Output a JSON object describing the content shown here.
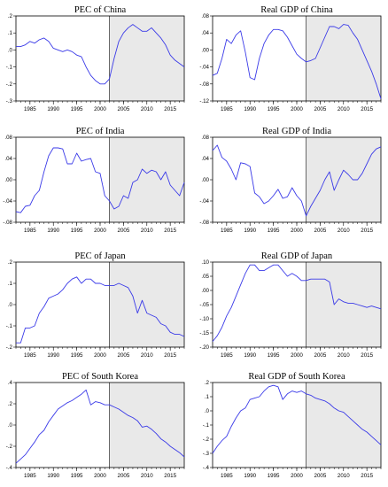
{
  "chart_data": [
    {
      "type": "line",
      "title": "PEC of China",
      "xlim": [
        1982,
        2018
      ],
      "ylim": [
        -0.3,
        0.2
      ],
      "yticks": [
        0.2,
        0.1,
        0.0,
        -0.1,
        -0.2,
        -0.3
      ],
      "ytick_labels": [
        ".2",
        ".1",
        ".0",
        "-.1",
        "-.2",
        "-.3"
      ],
      "xticks": [
        1985,
        1990,
        1995,
        2000,
        2005,
        2010,
        2015
      ],
      "xtick_labels": [
        "1985",
        "1990",
        "1995",
        "2000",
        "2005",
        "2010",
        "2015"
      ],
      "shade_from": 2002,
      "line_color": "#3a3ae8",
      "x": [
        1982,
        1983,
        1984,
        1985,
        1986,
        1987,
        1988,
        1989,
        1990,
        1991,
        1992,
        1993,
        1994,
        1995,
        1996,
        1997,
        1998,
        1999,
        2000,
        2001,
        2002,
        2003,
        2004,
        2005,
        2006,
        2007,
        2008,
        2009,
        2010,
        2011,
        2012,
        2013,
        2014,
        2015,
        2016,
        2017,
        2018
      ],
      "y": [
        0.02,
        0.02,
        0.03,
        0.05,
        0.04,
        0.06,
        0.07,
        0.05,
        0.01,
        0.0,
        -0.01,
        0.0,
        -0.01,
        -0.03,
        -0.04,
        -0.1,
        -0.15,
        -0.18,
        -0.2,
        -0.2,
        -0.17,
        -0.05,
        0.05,
        0.1,
        0.13,
        0.15,
        0.13,
        0.11,
        0.11,
        0.13,
        0.1,
        0.07,
        0.03,
        -0.03,
        -0.06,
        -0.08,
        -0.1
      ]
    },
    {
      "type": "line",
      "title": "Real GDP of China",
      "xlim": [
        1982,
        2018
      ],
      "ylim": [
        -0.12,
        0.08
      ],
      "yticks": [
        0.08,
        0.04,
        0.0,
        -0.04,
        -0.08,
        -0.12
      ],
      "ytick_labels": [
        ".08",
        ".04",
        ".00",
        "-.04",
        "-.08",
        "-.12"
      ],
      "xticks": [
        1985,
        1990,
        1995,
        2000,
        2005,
        2010,
        2015
      ],
      "xtick_labels": [
        "1985",
        "1990",
        "1995",
        "2000",
        "2005",
        "2010",
        "2015"
      ],
      "shade_from": 2002,
      "line_color": "#3a3ae8",
      "x": [
        1982,
        1983,
        1984,
        1985,
        1986,
        1987,
        1988,
        1989,
        1990,
        1991,
        1992,
        1993,
        1994,
        1995,
        1996,
        1997,
        1998,
        1999,
        2000,
        2001,
        2002,
        2003,
        2004,
        2005,
        2006,
        2007,
        2008,
        2009,
        2010,
        2011,
        2012,
        2013,
        2014,
        2015,
        2016,
        2017,
        2018
      ],
      "y": [
        -0.06,
        -0.055,
        -0.02,
        0.025,
        0.015,
        0.035,
        0.045,
        -0.005,
        -0.065,
        -0.07,
        -0.02,
        0.015,
        0.035,
        0.048,
        0.048,
        0.045,
        0.03,
        0.01,
        -0.01,
        -0.02,
        -0.028,
        -0.025,
        -0.02,
        0.005,
        0.03,
        0.055,
        0.055,
        0.05,
        0.06,
        0.058,
        0.04,
        0.025,
        0.0,
        -0.025,
        -0.05,
        -0.08,
        -0.115
      ]
    },
    {
      "type": "line",
      "title": "PEC of India",
      "xlim": [
        1982,
        2018
      ],
      "ylim": [
        -0.08,
        0.08
      ],
      "yticks": [
        0.08,
        0.04,
        0.0,
        -0.04,
        -0.08
      ],
      "ytick_labels": [
        ".08",
        ".04",
        ".00",
        "-.04",
        "-.08"
      ],
      "xticks": [
        1985,
        1990,
        1995,
        2000,
        2005,
        2010,
        2015
      ],
      "xtick_labels": [
        "1985",
        "1990",
        "1995",
        "2000",
        "2005",
        "2010",
        "2015"
      ],
      "shade_from": 2002,
      "line_color": "#3a3ae8",
      "x": [
        1982,
        1983,
        1984,
        1985,
        1986,
        1987,
        1988,
        1989,
        1990,
        1991,
        1992,
        1993,
        1994,
        1995,
        1996,
        1997,
        1998,
        1999,
        2000,
        2001,
        2002,
        2003,
        2004,
        2005,
        2006,
        2007,
        2008,
        2009,
        2010,
        2011,
        2012,
        2013,
        2014,
        2015,
        2016,
        2017,
        2018
      ],
      "y": [
        -0.06,
        -0.062,
        -0.05,
        -0.048,
        -0.03,
        -0.02,
        0.015,
        0.045,
        0.06,
        0.06,
        0.058,
        0.03,
        0.03,
        0.05,
        0.035,
        0.038,
        0.04,
        0.015,
        0.012,
        -0.03,
        -0.04,
        -0.055,
        -0.05,
        -0.03,
        -0.035,
        -0.005,
        0.0,
        0.02,
        0.012,
        0.018,
        0.015,
        0.0,
        0.015,
        -0.01,
        -0.02,
        -0.03,
        -0.005
      ]
    },
    {
      "type": "line",
      "title": "Real GDP of India",
      "xlim": [
        1982,
        2018
      ],
      "ylim": [
        -0.08,
        0.08
      ],
      "yticks": [
        0.08,
        0.04,
        0.0,
        -0.04,
        -0.08
      ],
      "ytick_labels": [
        ".08",
        ".04",
        ".00",
        "-.04",
        "-.08"
      ],
      "xticks": [
        1985,
        1990,
        1995,
        2000,
        2005,
        2010,
        2015
      ],
      "xtick_labels": [
        "1985",
        "1990",
        "1995",
        "2000",
        "2005",
        "2010",
        "2015"
      ],
      "shade_from": 2002,
      "line_color": "#3a3ae8",
      "x": [
        1982,
        1983,
        1984,
        1985,
        1986,
        1987,
        1988,
        1989,
        1990,
        1991,
        1992,
        1993,
        1994,
        1995,
        1996,
        1997,
        1998,
        1999,
        2000,
        2001,
        2002,
        2003,
        2004,
        2005,
        2006,
        2007,
        2008,
        2009,
        2010,
        2011,
        2012,
        2013,
        2014,
        2015,
        2016,
        2017,
        2018
      ],
      "y": [
        0.055,
        0.065,
        0.042,
        0.035,
        0.02,
        0.0,
        0.032,
        0.03,
        0.025,
        -0.025,
        -0.032,
        -0.045,
        -0.04,
        -0.03,
        -0.018,
        -0.035,
        -0.032,
        -0.015,
        -0.03,
        -0.04,
        -0.068,
        -0.05,
        -0.035,
        -0.02,
        0.0,
        0.015,
        -0.02,
        0.0,
        0.018,
        0.01,
        0.0,
        0.0,
        0.012,
        0.03,
        0.048,
        0.058,
        0.062
      ]
    },
    {
      "type": "line",
      "title": "PEC of Japan",
      "xlim": [
        1982,
        2018
      ],
      "ylim": [
        -0.2,
        0.2
      ],
      "yticks": [
        0.2,
        0.1,
        0.0,
        -0.1,
        -0.2
      ],
      "ytick_labels": [
        ".2",
        ".1",
        ".0",
        "-.1",
        "-.2"
      ],
      "xticks": [
        1985,
        1990,
        1995,
        2000,
        2005,
        2010,
        2015
      ],
      "xtick_labels": [
        "1985",
        "1990",
        "1995",
        "2000",
        "2005",
        "2010",
        "2015"
      ],
      "shade_from": 2002,
      "line_color": "#3a3ae8",
      "x": [
        1982,
        1983,
        1984,
        1985,
        1986,
        1987,
        1988,
        1989,
        1990,
        1991,
        1992,
        1993,
        1994,
        1995,
        1996,
        1997,
        1998,
        1999,
        2000,
        2001,
        2002,
        2003,
        2004,
        2005,
        2006,
        2007,
        2008,
        2009,
        2010,
        2011,
        2012,
        2013,
        2014,
        2015,
        2016,
        2017,
        2018
      ],
      "y": [
        -0.18,
        -0.18,
        -0.11,
        -0.11,
        -0.1,
        -0.04,
        -0.01,
        0.03,
        0.04,
        0.05,
        0.07,
        0.1,
        0.12,
        0.13,
        0.1,
        0.12,
        0.12,
        0.1,
        0.1,
        0.09,
        0.09,
        0.09,
        0.1,
        0.09,
        0.08,
        0.04,
        -0.04,
        0.02,
        -0.04,
        -0.05,
        -0.06,
        -0.09,
        -0.1,
        -0.13,
        -0.14,
        -0.14,
        -0.15
      ]
    },
    {
      "type": "line",
      "title": "Real GDP of Japan",
      "xlim": [
        1982,
        2018
      ],
      "ylim": [
        -0.2,
        0.1
      ],
      "yticks": [
        0.1,
        0.05,
        0.0,
        -0.05,
        -0.1,
        -0.15,
        -0.2
      ],
      "ytick_labels": [
        ".10",
        ".05",
        ".00",
        "-.05",
        "-.10",
        "-.15",
        "-.20"
      ],
      "xticks": [
        1985,
        1990,
        1995,
        2000,
        2005,
        2010,
        2015
      ],
      "xtick_labels": [
        "1985",
        "1990",
        "1995",
        "2000",
        "2005",
        "2010",
        "2015"
      ],
      "shade_from": 2002,
      "line_color": "#3a3ae8",
      "x": [
        1982,
        1983,
        1984,
        1985,
        1986,
        1987,
        1988,
        1989,
        1990,
        1991,
        1992,
        1993,
        1994,
        1995,
        1996,
        1997,
        1998,
        1999,
        2000,
        2001,
        2002,
        2003,
        2004,
        2005,
        2006,
        2007,
        2008,
        2009,
        2010,
        2011,
        2012,
        2013,
        2014,
        2015,
        2016,
        2017,
        2018
      ],
      "y": [
        -0.18,
        -0.16,
        -0.13,
        -0.09,
        -0.06,
        -0.02,
        0.02,
        0.06,
        0.09,
        0.09,
        0.07,
        0.07,
        0.08,
        0.09,
        0.09,
        0.07,
        0.05,
        0.06,
        0.05,
        0.035,
        0.035,
        0.04,
        0.04,
        0.04,
        0.04,
        0.03,
        -0.05,
        -0.03,
        -0.04,
        -0.045,
        -0.045,
        -0.05,
        -0.055,
        -0.06,
        -0.055,
        -0.06,
        -0.065
      ]
    },
    {
      "type": "line",
      "title": "PEC of South Korea",
      "xlim": [
        1982,
        2018
      ],
      "ylim": [
        -0.4,
        0.4
      ],
      "yticks": [
        0.4,
        0.2,
        0.0,
        -0.2,
        -0.4
      ],
      "ytick_labels": [
        ".4",
        ".2",
        ".0",
        "-.2",
        "-.4"
      ],
      "xticks": [
        1985,
        1990,
        1995,
        2000,
        2005,
        2010,
        2015
      ],
      "xtick_labels": [
        "1985",
        "1990",
        "1995",
        "2000",
        "2005",
        "2010",
        "2015"
      ],
      "shade_from": 2002,
      "line_color": "#3a3ae8",
      "x": [
        1982,
        1983,
        1984,
        1985,
        1986,
        1987,
        1988,
        1989,
        1990,
        1991,
        1992,
        1993,
        1994,
        1995,
        1996,
        1997,
        1998,
        1999,
        2000,
        2001,
        2002,
        2003,
        2004,
        2005,
        2006,
        2007,
        2008,
        2009,
        2010,
        2011,
        2012,
        2013,
        2014,
        2015,
        2016,
        2017,
        2018
      ],
      "y": [
        -0.36,
        -0.32,
        -0.28,
        -0.22,
        -0.16,
        -0.09,
        -0.05,
        0.03,
        0.09,
        0.15,
        0.18,
        0.21,
        0.23,
        0.26,
        0.29,
        0.33,
        0.19,
        0.22,
        0.21,
        0.19,
        0.19,
        0.17,
        0.15,
        0.12,
        0.09,
        0.07,
        0.04,
        -0.02,
        -0.01,
        -0.04,
        -0.08,
        -0.13,
        -0.16,
        -0.2,
        -0.23,
        -0.26,
        -0.3
      ]
    },
    {
      "type": "line",
      "title": "Real GDP of South Korea",
      "xlim": [
        1982,
        2018
      ],
      "ylim": [
        -0.4,
        0.2
      ],
      "yticks": [
        0.2,
        0.1,
        0.0,
        -0.1,
        -0.2,
        -0.3,
        -0.4
      ],
      "ytick_labels": [
        ".2",
        ".1",
        ".0",
        "-.1",
        "-.2",
        "-.3",
        "-.4"
      ],
      "xticks": [
        1985,
        1990,
        1995,
        2000,
        2005,
        2010,
        2015
      ],
      "xtick_labels": [
        "1985",
        "1990",
        "1995",
        "2000",
        "2005",
        "2010",
        "2015"
      ],
      "shade_from": 2002,
      "line_color": "#3a3ae8",
      "x": [
        1982,
        1983,
        1984,
        1985,
        1986,
        1987,
        1988,
        1989,
        1990,
        1991,
        1992,
        1993,
        1994,
        1995,
        1996,
        1997,
        1998,
        1999,
        2000,
        2001,
        2002,
        2003,
        2004,
        2005,
        2006,
        2007,
        2008,
        2009,
        2010,
        2011,
        2012,
        2013,
        2014,
        2015,
        2016,
        2017,
        2018
      ],
      "y": [
        -0.3,
        -0.25,
        -0.21,
        -0.18,
        -0.11,
        -0.05,
        0.0,
        0.02,
        0.08,
        0.09,
        0.1,
        0.14,
        0.17,
        0.18,
        0.17,
        0.08,
        0.12,
        0.14,
        0.13,
        0.14,
        0.12,
        0.11,
        0.09,
        0.08,
        0.07,
        0.05,
        0.02,
        0.0,
        -0.01,
        -0.04,
        -0.07,
        -0.1,
        -0.13,
        -0.15,
        -0.18,
        -0.21,
        -0.24
      ]
    }
  ]
}
